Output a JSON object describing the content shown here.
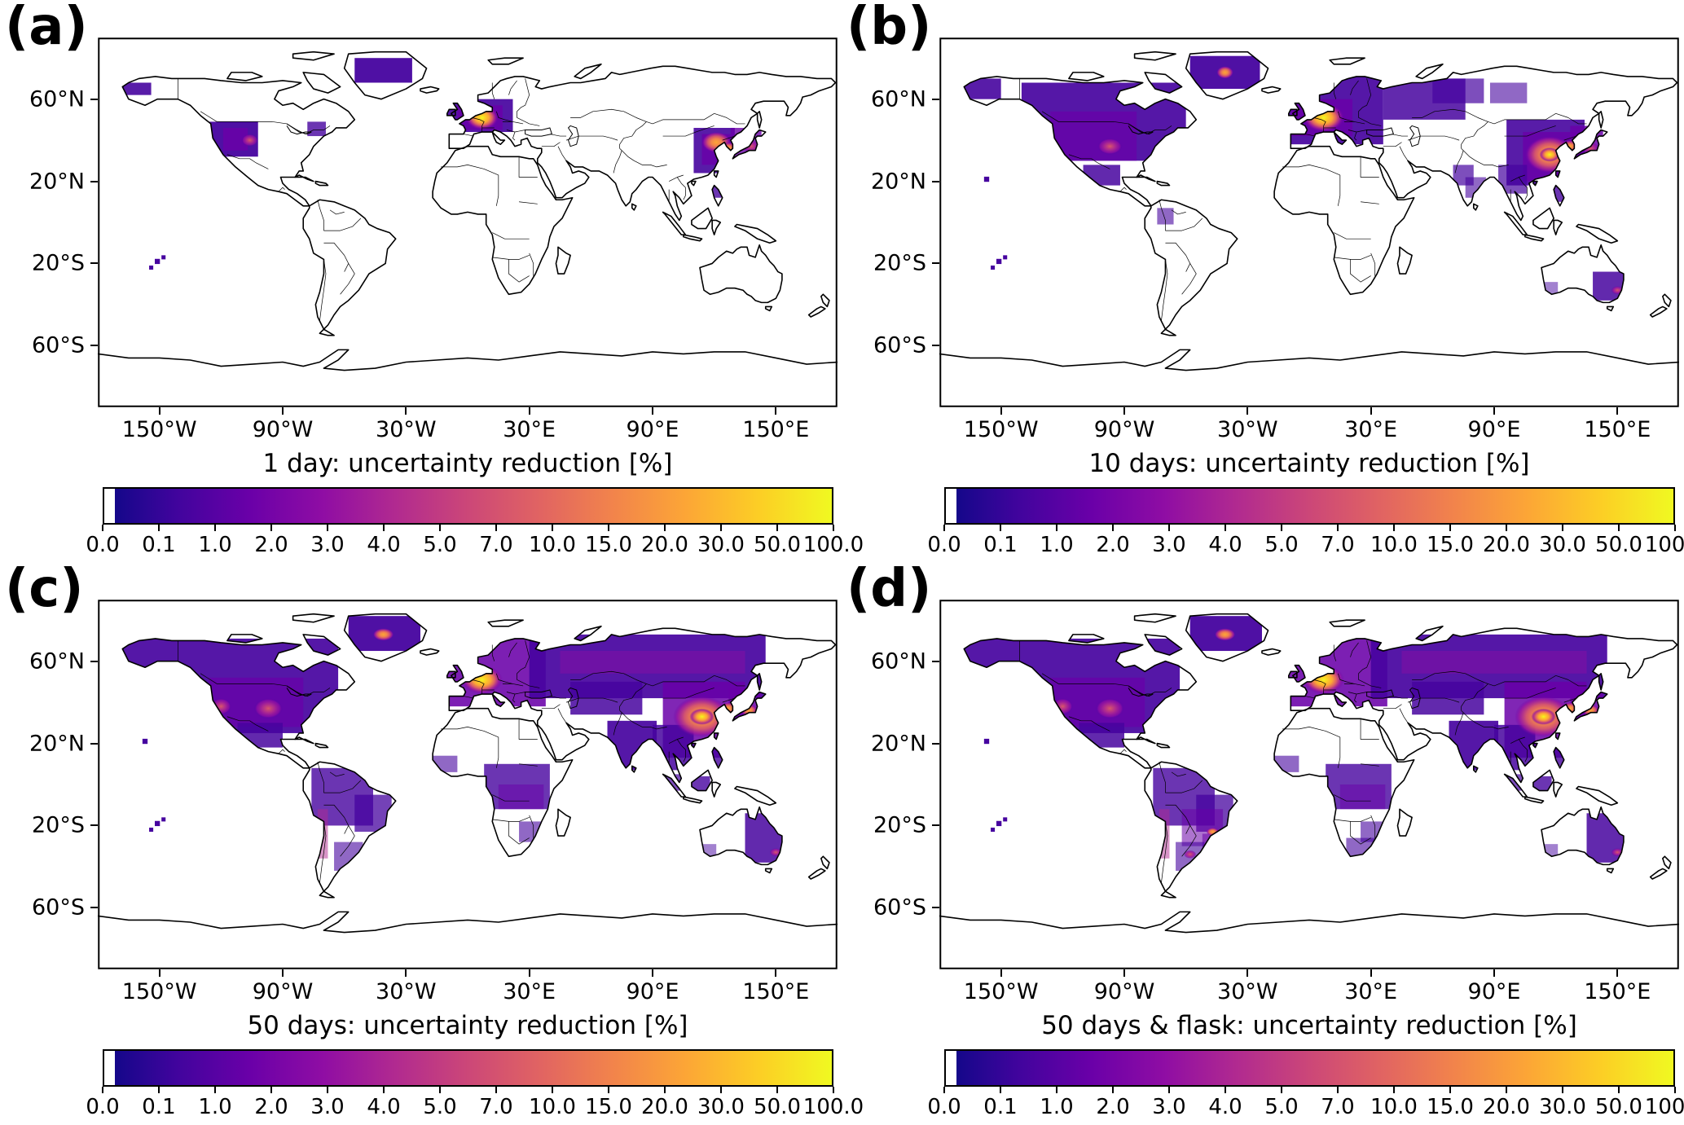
{
  "chart_data": {
    "type": "heatmap",
    "projection": "equirectangular world map, lon -180..180, lat -90..90",
    "colormap": "plasma",
    "colors": {
      "c0": "#0d0887",
      "c1": "#46039f",
      "c2": "#6a00a8",
      "c3": "#8f0da4",
      "c4": "#b12a90",
      "c5": "#cc4778",
      "c6": "#e16462",
      "c7": "#f2844b",
      "c8": "#fca636",
      "c9": "#fcce25",
      "c10": "#f0f921"
    },
    "colorbar_gradient": [
      "#0d0887",
      "#41049d",
      "#6a00a8",
      "#8f0da4",
      "#b12a90",
      "#cc4778",
      "#e16462",
      "#f2844b",
      "#fca636",
      "#fcce25",
      "#f0f921"
    ],
    "colorbar_ticks": [
      "0.0",
      "0.1",
      "1.0",
      "2.0",
      "3.0",
      "4.0",
      "5.0",
      "7.0",
      "10.0",
      "15.0",
      "20.0",
      "30.0",
      "50.0",
      "100.0"
    ],
    "x_ticks": [
      {
        "label": "150°W",
        "lon": -150
      },
      {
        "label": "90°W",
        "lon": -90
      },
      {
        "label": "30°W",
        "lon": -30
      },
      {
        "label": "30°E",
        "lon": 30
      },
      {
        "label": "90°E",
        "lon": 90
      },
      {
        "label": "150°E",
        "lon": 150
      }
    ],
    "y_ticks": [
      {
        "label": "60°N",
        "lat": 60
      },
      {
        "label": "20°N",
        "lat": 20
      },
      {
        "label": "20°S",
        "lat": -20
      },
      {
        "label": "60°S",
        "lat": -60
      }
    ],
    "panels": [
      {
        "id": "a",
        "letter": "(a)",
        "title": "1 day: uncertainty reduction [%]",
        "patches": [
          [
            -55,
            80,
            28,
            12,
            "c1",
            0.95
          ],
          [
            -168,
            68,
            14,
            6,
            "c1",
            0.9
          ],
          [
            -126,
            49,
            24,
            17,
            "c1",
            0.95
          ],
          [
            -119,
            46,
            12,
            11,
            "c2",
            0.8
          ],
          [
            -78,
            49,
            9,
            7,
            "c1",
            0.8
          ],
          [
            -68,
            20,
            5,
            4,
            "c1",
            0.9
          ],
          [
            -10,
            60,
            32,
            16,
            "c1",
            0.92
          ],
          [
            -5,
            57,
            22,
            12,
            "c2",
            0.85
          ],
          [
            110,
            46,
            20,
            22,
            "c1",
            0.9
          ],
          [
            114,
            43,
            14,
            15,
            "c2",
            0.8
          ],
          [
            128,
            46,
            15,
            14,
            "c2",
            0.8
          ],
          [
            119,
            18,
            5,
            6,
            "c1",
            0.8
          ]
        ],
        "hotspots": [
          [
            7,
            51,
            8,
            6,
            "yellow"
          ],
          [
            121,
            39,
            7,
            5,
            "orange"
          ],
          [
            127,
            36,
            4,
            3,
            "orange"
          ],
          [
            138,
            37,
            4,
            3,
            "pink"
          ],
          [
            -106,
            40,
            4,
            3,
            "pink"
          ]
        ],
        "ocean_dots": [
          [
            -151,
            -19,
            2.5,
            "c1"
          ],
          [
            -148,
            -17,
            2,
            "c1"
          ],
          [
            -154,
            -22,
            2,
            "c1"
          ]
        ]
      },
      {
        "id": "b",
        "letter": "(b)",
        "title": "10 days: uncertainty reduction [%]",
        "patches": [
          [
            -168,
            70,
            18,
            10,
            "c1",
            0.9
          ],
          [
            -140,
            68,
            80,
            38,
            "c1",
            0.92
          ],
          [
            -126,
            54,
            42,
            24,
            "c2",
            0.7
          ],
          [
            -110,
            28,
            18,
            10,
            "c1",
            0.85
          ],
          [
            -58,
            81,
            34,
            16,
            "c1",
            0.95
          ],
          [
            -14,
            71,
            50,
            33,
            "c1",
            0.92
          ],
          [
            -9,
            60,
            30,
            18,
            "c2",
            0.85
          ],
          [
            36,
            70,
            40,
            20,
            "c1",
            0.85
          ],
          [
            60,
            70,
            25,
            12,
            "c1",
            0.7
          ],
          [
            88,
            68,
            18,
            10,
            "c1",
            0.6
          ],
          [
            96,
            50,
            38,
            32,
            "c1",
            0.9
          ],
          [
            104,
            44,
            26,
            24,
            "c2",
            0.8
          ],
          [
            127,
            47,
            16,
            15,
            "c2",
            0.85
          ],
          [
            70,
            28,
            10,
            10,
            "c1",
            0.7
          ],
          [
            76,
            22,
            10,
            10,
            "c1",
            0.6
          ],
          [
            92,
            28,
            14,
            14,
            "c1",
            0.7
          ],
          [
            119,
            18,
            6,
            8,
            "c1",
            0.8
          ],
          [
            -68,
            20,
            6,
            4,
            "c1",
            0.9
          ],
          [
            -74,
            7,
            8,
            8,
            "c1",
            0.6
          ],
          [
            138,
            -24,
            16,
            14,
            "c1",
            0.85
          ],
          [
            113,
            -29,
            8,
            7,
            "c1",
            0.5
          ]
        ],
        "hotspots": [
          [
            7,
            51,
            10,
            7,
            "yellow"
          ],
          [
            -41,
            73,
            4,
            3,
            "orange"
          ],
          [
            -97,
            37,
            6,
            4,
            "pink"
          ],
          [
            117,
            33,
            12,
            9,
            "orange"
          ],
          [
            117,
            33,
            5,
            3.5,
            "yellow"
          ],
          [
            127,
            37,
            4,
            3,
            "orange"
          ],
          [
            137,
            36,
            4,
            3,
            "pink"
          ],
          [
            150,
            -33,
            3,
            2,
            "pink"
          ]
        ],
        "ocean_dots": [
          [
            -151,
            -19,
            2.5,
            "c1"
          ],
          [
            -148,
            -17,
            2,
            "c1"
          ],
          [
            -154,
            -22,
            2,
            "c1"
          ],
          [
            -157,
            21,
            2.5,
            "c1"
          ]
        ]
      },
      {
        "id": "c",
        "letter": "(c)",
        "title": "50 days: uncertainty reduction [%]",
        "patches": [
          [
            -168,
            71,
            105,
            46,
            "c1",
            0.92
          ],
          [
            -126,
            52,
            46,
            24,
            "c2",
            0.7
          ],
          [
            -112,
            30,
            22,
            12,
            "c1",
            0.85
          ],
          [
            -58,
            82,
            35,
            17,
            "c1",
            0.95
          ],
          [
            -14,
            72,
            52,
            34,
            "c2",
            0.88
          ],
          [
            30,
            73,
            115,
            31,
            "c1",
            0.92
          ],
          [
            45,
            65,
            90,
            11,
            "c3",
            0.45
          ],
          [
            50,
            50,
            35,
            16,
            "c1",
            0.85
          ],
          [
            95,
            50,
            40,
            37,
            "c2",
            0.85
          ],
          [
            68,
            31,
            24,
            24,
            "c1",
            0.92
          ],
          [
            90,
            29,
            20,
            22,
            "c1",
            0.85
          ],
          [
            108,
            4,
            10,
            9,
            "c1",
            0.8
          ],
          [
            119,
            18,
            6,
            9,
            "c1",
            0.8
          ],
          [
            95,
            5,
            9,
            8,
            "c1",
            0.7
          ],
          [
            127,
            47,
            16,
            15,
            "c2",
            0.85
          ],
          [
            -76,
            8,
            30,
            28,
            "c1",
            0.8
          ],
          [
            -73,
            -12,
            5,
            24,
            "c4",
            0.5
          ],
          [
            -55,
            -5,
            18,
            18,
            "c1",
            0.75
          ],
          [
            -65,
            -28,
            14,
            14,
            "c1",
            0.6
          ],
          [
            8,
            10,
            32,
            22,
            "c1",
            0.8
          ],
          [
            15,
            0,
            22,
            12,
            "c2",
            0.5
          ],
          [
            25,
            -18,
            12,
            10,
            "c1",
            0.6
          ],
          [
            -17,
            14,
            12,
            8,
            "c1",
            0.6
          ],
          [
            135,
            -14,
            18,
            24,
            "c1",
            0.85
          ],
          [
            113,
            -29,
            8,
            7,
            "c1",
            0.5
          ],
          [
            -68,
            20,
            6,
            4,
            "c1",
            0.9
          ]
        ],
        "hotspots": [
          [
            7,
            51,
            10,
            7,
            "yellow"
          ],
          [
            -41,
            73,
            5,
            3,
            "orange"
          ],
          [
            -97,
            37,
            7,
            5,
            "pink"
          ],
          [
            -120,
            38,
            5,
            4,
            "pink"
          ],
          [
            114,
            33,
            14,
            10,
            "orange"
          ],
          [
            114,
            33,
            6,
            4,
            "yellow"
          ],
          [
            127,
            37,
            4,
            3,
            "orange"
          ],
          [
            137,
            36,
            4,
            3,
            "orange"
          ],
          [
            150,
            -33,
            3,
            2,
            "pink"
          ]
        ],
        "ocean_dots": [
          [
            -151,
            -19,
            2.5,
            "c1"
          ],
          [
            -148,
            -17,
            2,
            "c1"
          ],
          [
            -154,
            -22,
            2,
            "c1"
          ],
          [
            -157,
            21,
            2.5,
            "c1"
          ]
        ]
      },
      {
        "id": "d",
        "letter": "(d)",
        "title": "50 days & flask: uncertainty reduction [%]",
        "patches": [
          [
            -168,
            71,
            105,
            46,
            "c1",
            0.92
          ],
          [
            -126,
            52,
            46,
            24,
            "c2",
            0.7
          ],
          [
            -112,
            30,
            22,
            12,
            "c1",
            0.85
          ],
          [
            -58,
            82,
            35,
            17,
            "c1",
            0.95
          ],
          [
            -14,
            72,
            52,
            34,
            "c2",
            0.88
          ],
          [
            30,
            73,
            115,
            31,
            "c1",
            0.92
          ],
          [
            45,
            65,
            90,
            11,
            "c3",
            0.45
          ],
          [
            50,
            50,
            35,
            16,
            "c1",
            0.85
          ],
          [
            95,
            50,
            40,
            37,
            "c2",
            0.85
          ],
          [
            68,
            31,
            24,
            24,
            "c1",
            0.92
          ],
          [
            90,
            29,
            20,
            22,
            "c1",
            0.85
          ],
          [
            108,
            4,
            10,
            9,
            "c1",
            0.8
          ],
          [
            119,
            18,
            6,
            9,
            "c1",
            0.8
          ],
          [
            95,
            5,
            9,
            8,
            "c1",
            0.7
          ],
          [
            127,
            47,
            16,
            15,
            "c2",
            0.85
          ],
          [
            -76,
            8,
            30,
            28,
            "c1",
            0.8
          ],
          [
            -73,
            -12,
            5,
            24,
            "c4",
            0.5
          ],
          [
            -55,
            -5,
            18,
            18,
            "c1",
            0.75
          ],
          [
            -62,
            -12,
            20,
            18,
            "c2",
            0.55
          ],
          [
            -52,
            -24,
            12,
            12,
            "c2",
            0.55
          ],
          [
            -65,
            -28,
            14,
            14,
            "c1",
            0.6
          ],
          [
            8,
            10,
            32,
            22,
            "c1",
            0.8
          ],
          [
            15,
            0,
            22,
            12,
            "c2",
            0.5
          ],
          [
            25,
            -18,
            12,
            10,
            "c1",
            0.6
          ],
          [
            18,
            -26,
            14,
            12,
            "c1",
            0.6
          ],
          [
            -17,
            14,
            12,
            8,
            "c1",
            0.6
          ],
          [
            135,
            -14,
            18,
            24,
            "c1",
            0.85
          ],
          [
            113,
            -29,
            8,
            7,
            "c1",
            0.5
          ],
          [
            -68,
            20,
            6,
            4,
            "c1",
            0.9
          ]
        ],
        "hotspots": [
          [
            7,
            51,
            10,
            7,
            "yellow"
          ],
          [
            -41,
            73,
            5,
            3,
            "orange"
          ],
          [
            -97,
            37,
            7,
            5,
            "pink"
          ],
          [
            -120,
            38,
            5,
            4,
            "pink"
          ],
          [
            114,
            33,
            14,
            10,
            "orange"
          ],
          [
            114,
            33,
            6,
            4,
            "yellow"
          ],
          [
            127,
            37,
            4,
            3,
            "orange"
          ],
          [
            137,
            36,
            4,
            3,
            "orange"
          ],
          [
            150,
            -33,
            3,
            2,
            "pink"
          ],
          [
            -47,
            -23,
            3,
            2,
            "orange"
          ],
          [
            -58,
            -34,
            3,
            2,
            "pink"
          ]
        ],
        "ocean_dots": [
          [
            -151,
            -19,
            2.5,
            "c1"
          ],
          [
            -148,
            -17,
            2,
            "c1"
          ],
          [
            -154,
            -22,
            2,
            "c1"
          ],
          [
            -157,
            21,
            2.5,
            "c1"
          ]
        ]
      }
    ]
  }
}
